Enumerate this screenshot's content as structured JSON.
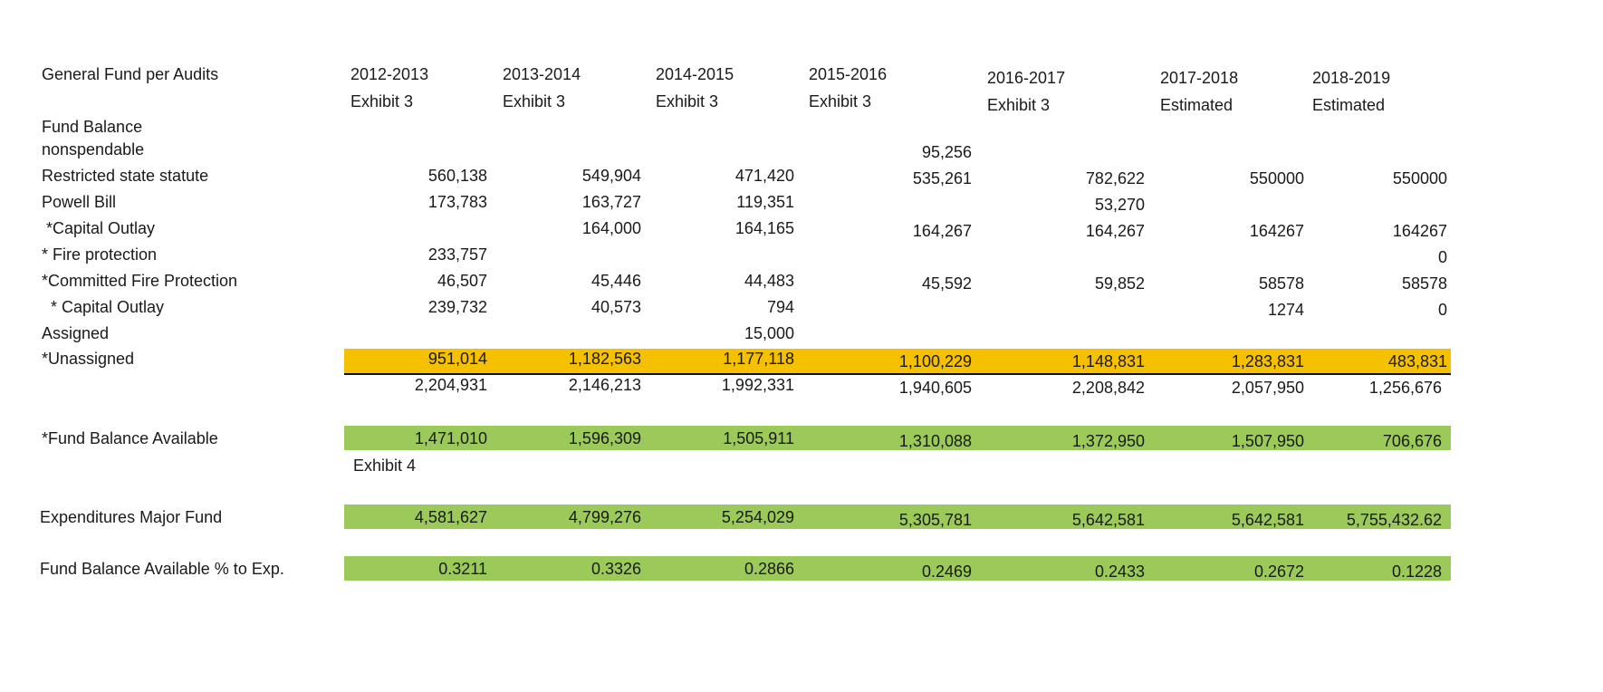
{
  "title": "General Fund per Audits",
  "columns": [
    {
      "year": "2012-2013",
      "source": "Exhibit 3"
    },
    {
      "year": "2013-2014",
      "source": "Exhibit 3"
    },
    {
      "year": "2014-2015",
      "source": "Exhibit 3"
    },
    {
      "year": "2015-2016",
      "source": "Exhibit 3"
    },
    {
      "year": "2016-2017",
      "source": "Exhibit 3"
    },
    {
      "year": "2017-2018",
      "source": "Estimated"
    },
    {
      "year": "2018-2019",
      "source": "Estimated"
    }
  ],
  "section_label": "Fund Balance",
  "rows": [
    {
      "label": "nonspendable",
      "values": [
        "",
        "",
        "",
        "95,256",
        "",
        "",
        ""
      ]
    },
    {
      "label": "Restricted state statute",
      "values": [
        "560,138",
        "549,904",
        "471,420",
        "535,261",
        "782,622",
        "550000",
        "550000"
      ]
    },
    {
      "label": "Powell Bill",
      "values": [
        "173,783",
        "163,727",
        "119,351",
        "",
        "53,270",
        "",
        ""
      ]
    },
    {
      "label": " *Capital Outlay",
      "values": [
        "",
        "164,000",
        "164,165",
        "164,267",
        "164,267",
        "164267",
        "164267"
      ]
    },
    {
      "label": "* Fire protection",
      "values": [
        "233,757",
        "",
        "",
        "",
        "",
        "",
        "0"
      ]
    },
    {
      "label": "*Committed Fire Protection",
      "values": [
        "46,507",
        "45,446",
        "44,483",
        "45,592",
        "59,852",
        "58578",
        "58578"
      ]
    },
    {
      "label": "  * Capital Outlay",
      "values": [
        "239,732",
        "40,573",
        "794",
        "",
        "",
        "1274",
        "0"
      ]
    },
    {
      "label": "Assigned",
      "values": [
        "",
        "",
        "15,000",
        "",
        "",
        "",
        ""
      ]
    },
    {
      "label": "*Unassigned",
      "values": [
        "951,014",
        "1,182,563",
        "1,177,118",
        "1,100,229",
        "1,148,831",
        "1,283,831",
        "483,831"
      ]
    }
  ],
  "totals": [
    "2,204,931",
    "2,146,213",
    "1,992,331",
    "1,940,605",
    "2,208,842",
    "2,057,950",
    "1,256,676"
  ],
  "fund_balance_available": {
    "label": "*Fund Balance Available",
    "values": [
      "1,471,010",
      "1,596,309",
      "1,505,911",
      "1,310,088",
      "1,372,950",
      "1,507,950",
      "706,676"
    ],
    "note": "Exhibit 4"
  },
  "expenditures": {
    "label": "Expenditures Major Fund",
    "values": [
      "4,581,627",
      "4,799,276",
      "5,254,029",
      "5,305,781",
      "5,642,581",
      "5,642,581",
      "5,755,432.62"
    ]
  },
  "ratio": {
    "label": "Fund Balance Available % to Exp.",
    "values": [
      "0.3211",
      "0.3326",
      "0.2866",
      "0.2469",
      "0.2433",
      "0.2672",
      "0.1228"
    ]
  },
  "colors": {
    "unassigned_highlight": "#f5c000",
    "available_highlight": "#9bc95a"
  }
}
